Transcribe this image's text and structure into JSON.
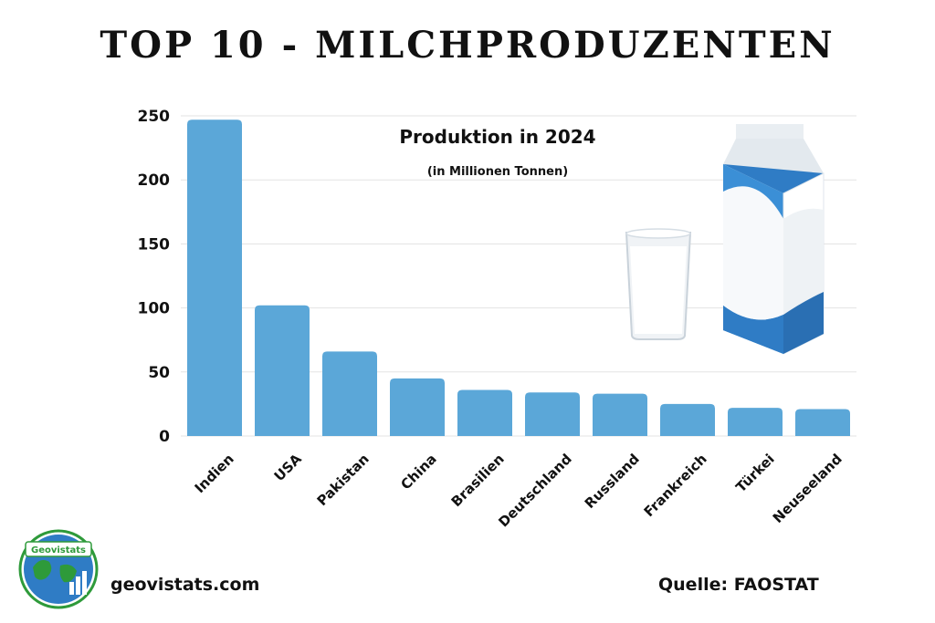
{
  "header": {
    "title": "TOP 10 - MILCHPRODUZENTEN"
  },
  "chart_data": {
    "type": "bar",
    "title": "TOP 10 - MILCHPRODUZENTEN",
    "subtitle": "Produktion in 2024",
    "unit": "(in Millionen Tonnen)",
    "categories": [
      "Indien",
      "USA",
      "Pakistan",
      "China",
      "Brasilien",
      "Deutschland",
      "Russland",
      "Frankreich",
      "Türkei",
      "Neuseeland"
    ],
    "values": [
      247,
      102,
      66,
      45,
      36,
      34,
      33,
      25,
      22,
      21
    ],
    "yticks": [
      "250",
      "200",
      "150",
      "100",
      "50",
      "0"
    ],
    "ylim": [
      0,
      250
    ],
    "grid": true,
    "bar_color": "#5ba7d8"
  },
  "footer": {
    "logo_text": "Geovistats",
    "website": "geovistats.com",
    "source": "Quelle: FAOSTAT"
  },
  "colors": {
    "accent": "#2f7cc5",
    "logo_green": "#2e9a3a"
  }
}
